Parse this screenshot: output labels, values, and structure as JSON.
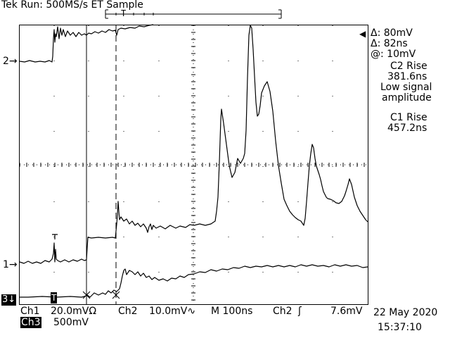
{
  "header": {
    "title": "Tek Run: 500MS/s ET Sample"
  },
  "readout": {
    "delta_v": "Δ: 80mV",
    "delta_t": "Δ: 82ns",
    "at_v": "@: 10mV",
    "c2_rise_label": "C2 Rise",
    "c2_rise_value": "381.6ns",
    "note_line1": "Low signal",
    "note_line2": "amplitude",
    "c1_rise_label": "C1 Rise",
    "c1_rise_value": "457.2ns"
  },
  "markers": {
    "ch2": "2",
    "ch1": "1",
    "ch3": "3",
    "trigger": "T"
  },
  "status": {
    "ch1_label": "Ch1",
    "ch1_scale": "20.0mVΩ",
    "ch2_label": "Ch2",
    "ch2_scale": "10.0mV∿",
    "timebase": "M  100ns",
    "trig_src": "Ch2",
    "trig_slope": "ʃ",
    "trig_level": "7.6mV",
    "ch3_label": "Ch3",
    "ch3_scale": "500mV",
    "date": "22 May 2020",
    "time": "15:37:10"
  },
  "colors": {
    "trace": "#000000",
    "background": "#ffffff"
  }
}
